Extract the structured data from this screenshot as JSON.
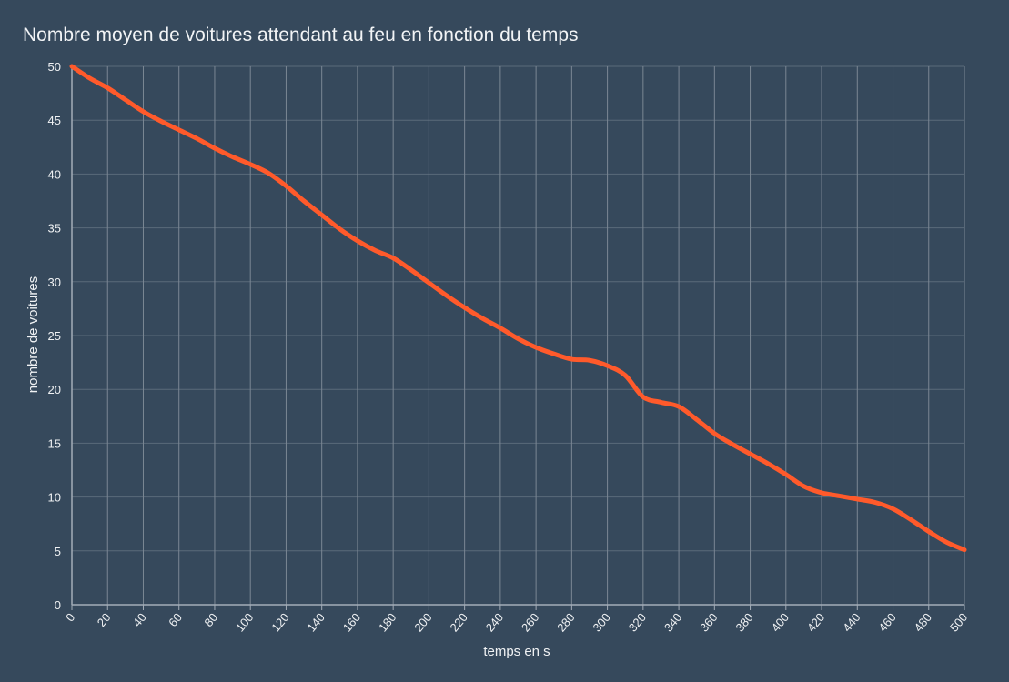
{
  "colors": {
    "background": "#36495c",
    "line": "#ff5a2b",
    "grid": "#5a6a7a",
    "vertical_grid": "#7b8794",
    "axis": "#a3adb8"
  },
  "chart_data": {
    "type": "line",
    "title": "Nombre moyen de voitures attendant au feu en fonction du temps",
    "xlabel": "temps en s",
    "ylabel": "nombre de voitures",
    "xlim": [
      0,
      500
    ],
    "ylim": [
      0,
      50
    ],
    "x_ticks": [
      "0",
      "20",
      "40",
      "60",
      "80",
      "100",
      "120",
      "140",
      "160",
      "180",
      "200",
      "220",
      "240",
      "260",
      "280",
      "300",
      "320",
      "340",
      "360",
      "380",
      "400",
      "420",
      "440",
      "460",
      "480",
      "500"
    ],
    "y_ticks": [
      "0",
      "5",
      "10",
      "15",
      "20",
      "25",
      "30",
      "35",
      "40",
      "45",
      "50"
    ],
    "grid": true,
    "legend": "none",
    "series": [
      {
        "x": [
          0,
          10,
          20,
          30,
          40,
          50,
          60,
          70,
          80,
          90,
          100,
          110,
          120,
          130,
          140,
          150,
          160,
          170,
          180,
          190,
          200,
          210,
          220,
          230,
          240,
          250,
          260,
          270,
          280,
          290,
          300,
          310,
          320,
          330,
          340,
          350,
          360,
          370,
          380,
          390,
          400,
          410,
          420,
          430,
          440,
          450,
          460,
          470,
          480,
          490,
          500
        ],
        "y": [
          50,
          48.9,
          48.0,
          46.9,
          45.8,
          44.9,
          44.1,
          43.3,
          42.4,
          41.6,
          40.9,
          40.1,
          38.9,
          37.5,
          36.2,
          34.9,
          33.8,
          32.9,
          32.2,
          31.1,
          29.9,
          28.7,
          27.6,
          26.6,
          25.7,
          24.7,
          23.9,
          23.3,
          22.8,
          22.7,
          22.2,
          21.3,
          19.3,
          18.8,
          18.4,
          17.2,
          15.9,
          14.9,
          14.0,
          13.1,
          12.1,
          11.0,
          10.4,
          10.1,
          9.8,
          9.5,
          8.9,
          7.9,
          6.8,
          5.8,
          5.1
        ]
      }
    ]
  }
}
